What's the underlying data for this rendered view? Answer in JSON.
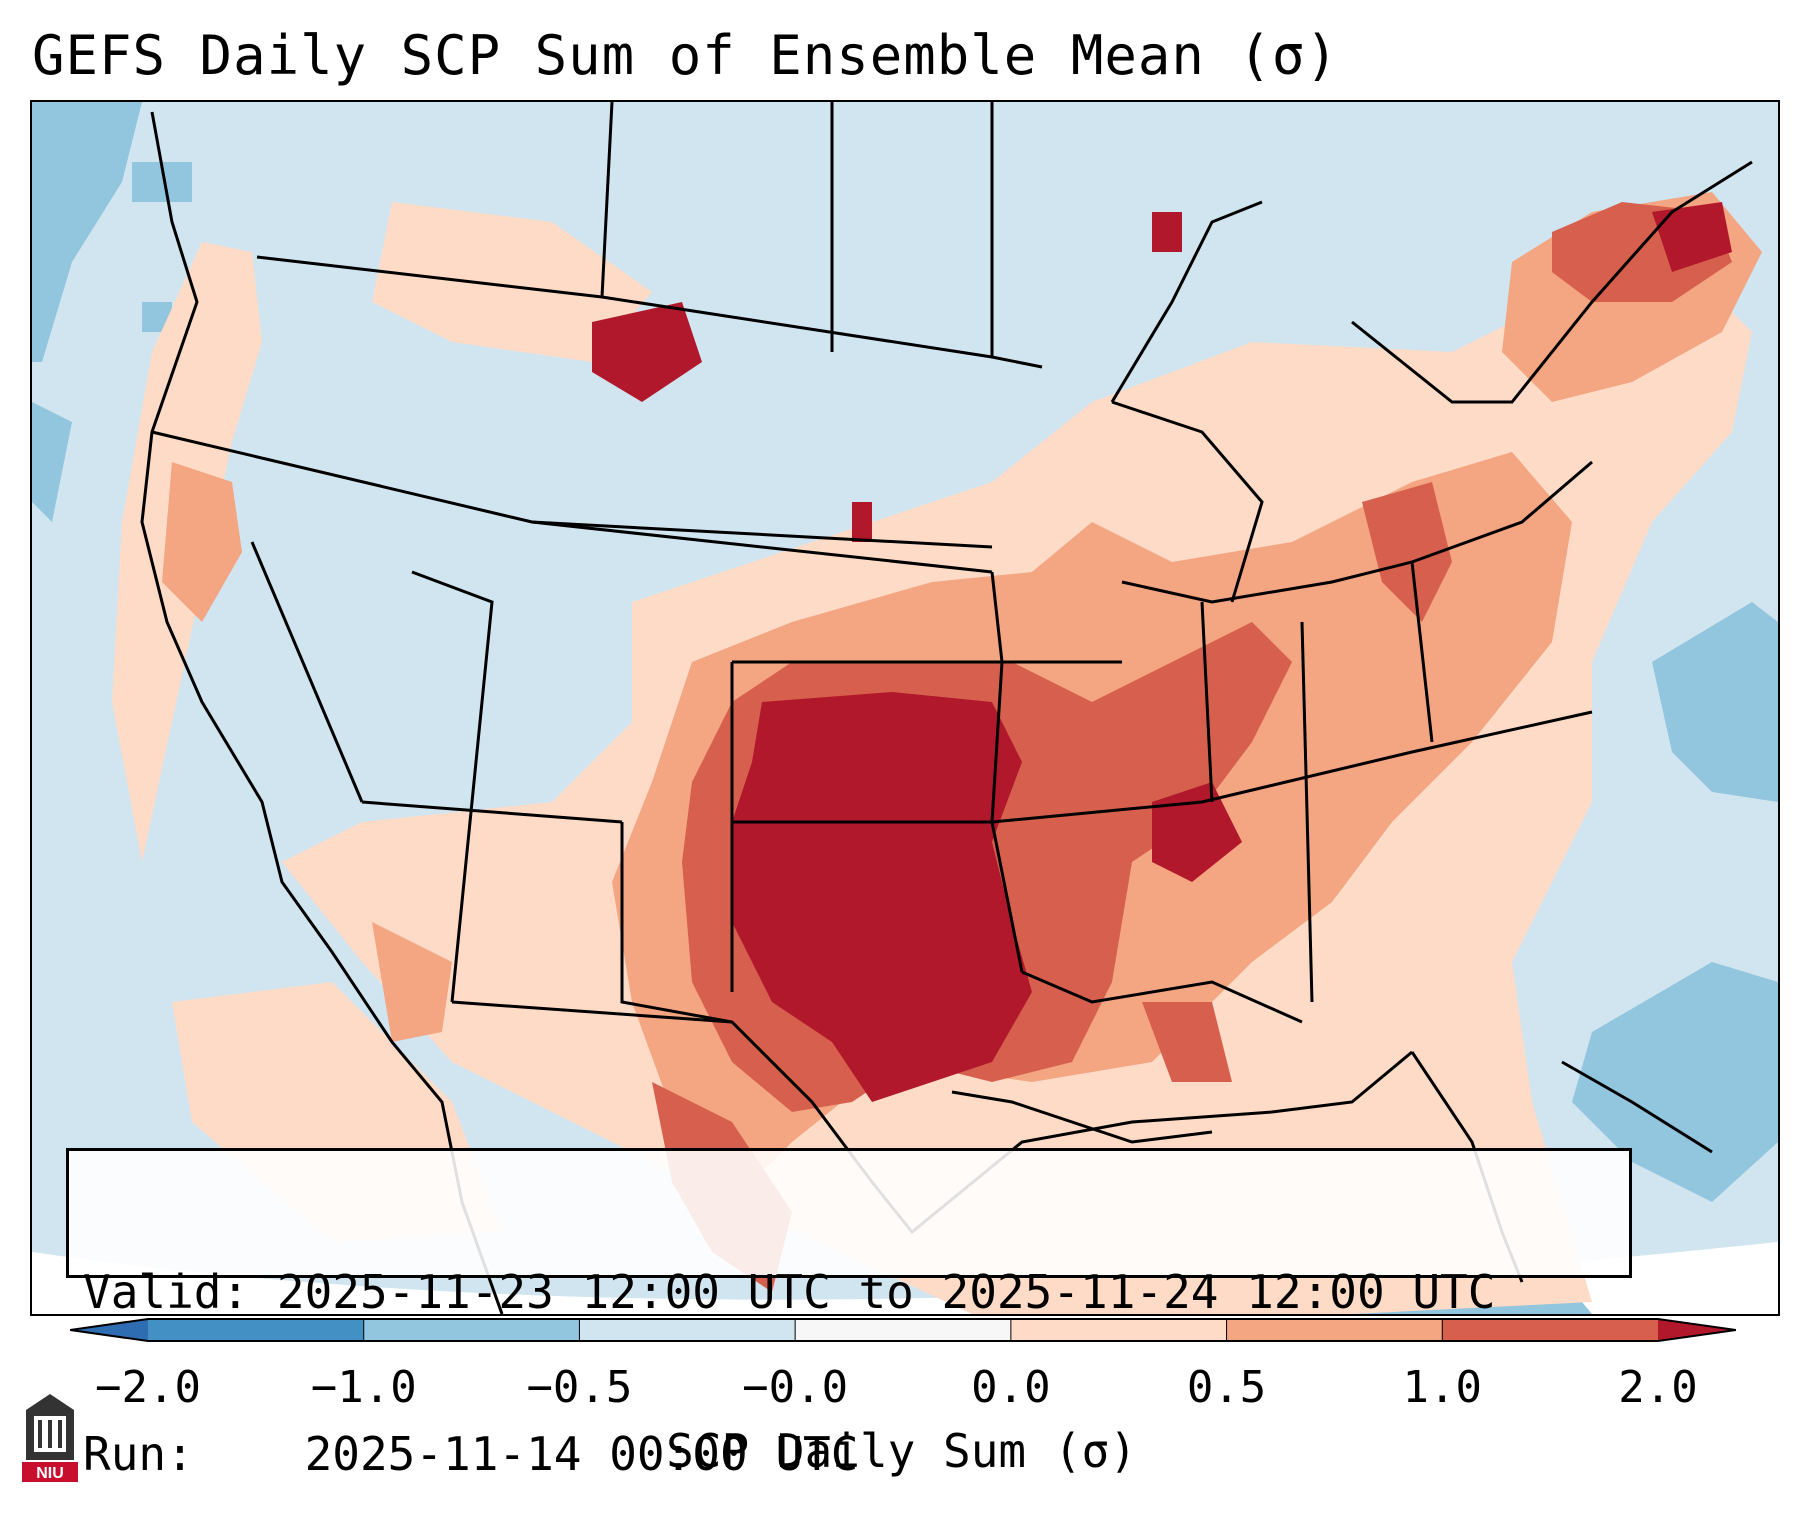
{
  "title": "GEFS Daily SCP Sum of Ensemble Mean (σ)",
  "info": {
    "valid_label": "Valid:",
    "valid_value": "2025-11-23 12:00 UTC to 2025-11-24 12:00 UTC",
    "run_label": "Run:",
    "run_value": "2025-11-14 00:00 UTC"
  },
  "colorbar": {
    "label": "SCP Daily Sum (σ)",
    "ticks": [
      "−2.0",
      "−1.0",
      "−0.5",
      "−0.0",
      "0.0",
      "0.5",
      "1.0",
      "2.0"
    ],
    "colors": {
      "below": "#2e6db1",
      "neg2_neg1": "#4390c5",
      "neg1_neg05": "#92c5de",
      "neg05_0": "#d1e5f0",
      "zero_band": "#f7f7f7",
      "p0_p05": "#fddbc7",
      "p05_p1": "#f4a582",
      "p1_p2": "#d6604d",
      "above": "#b2182b"
    }
  },
  "logo": {
    "text": "NIU"
  }
}
